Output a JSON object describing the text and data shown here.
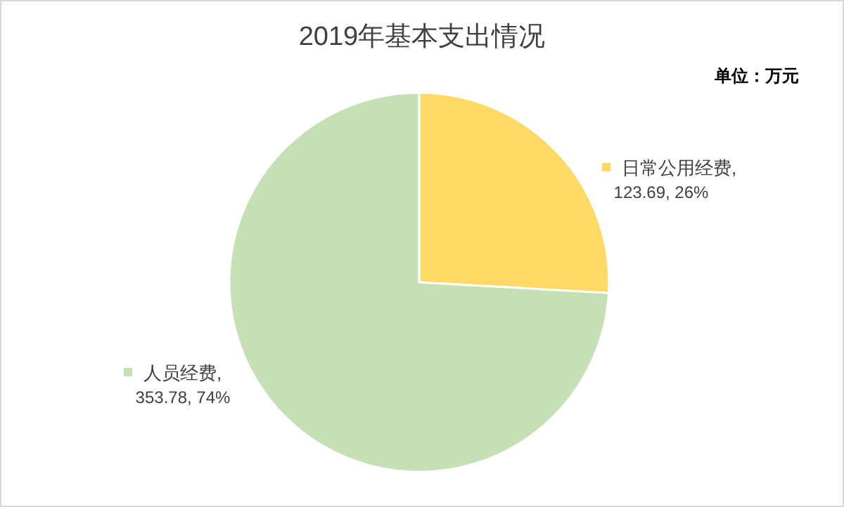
{
  "chart_data": {
    "type": "pie",
    "title": "2019年基本支出情况",
    "annotations": [
      "单位：万元"
    ],
    "categories": [
      "日常公用经费",
      "人员经费"
    ],
    "values": [
      123.69,
      353.78
    ],
    "value_labels": [
      ",\n123.69, 26%",
      ",\n353.78, 74%"
    ],
    "colors": [
      "#ffd966",
      "#c5e0b4"
    ],
    "legend": "left"
  }
}
